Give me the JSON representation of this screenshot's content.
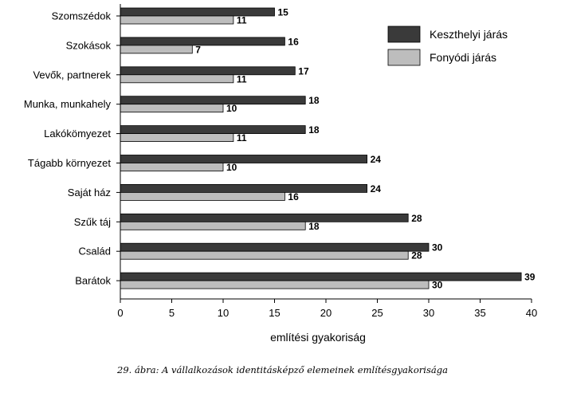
{
  "chart_data": {
    "type": "bar",
    "orientation": "horizontal",
    "categories": [
      "Szomszédok",
      "Szokások",
      "Vevők, partnerek",
      "Munka, munkahely",
      "Lakókömyezet",
      "Tágabb környezet",
      "Saját ház",
      "Szűk táj",
      "Család",
      "Barátok"
    ],
    "series": [
      {
        "name": "Keszthelyi járás",
        "color": "#3a3a3a",
        "values": [
          15,
          16,
          17,
          18,
          18,
          24,
          24,
          28,
          30,
          39
        ]
      },
      {
        "name": "Fonyódi járás",
        "color": "#bdbdbd",
        "values": [
          11,
          7,
          11,
          10,
          11,
          10,
          16,
          18,
          28,
          30
        ]
      }
    ],
    "xlim": [
      0,
      40
    ],
    "xticks": [
      0,
      5,
      10,
      15,
      20,
      25,
      30,
      35,
      40
    ],
    "xlabel": "említési gyakoriság",
    "ylabel": "",
    "legend_position": "top-right",
    "grid": false
  },
  "caption": "29. ábra: A vállalkozások identitásképző elemeinek említésgyakorisága"
}
